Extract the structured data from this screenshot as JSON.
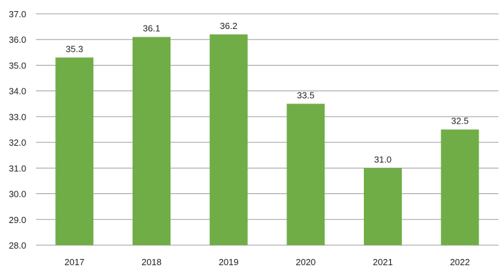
{
  "chart_data": {
    "type": "bar",
    "title": "",
    "xlabel": "",
    "ylabel": "",
    "categories": [
      "2017",
      "2018",
      "2019",
      "2020",
      "2021",
      "2022"
    ],
    "values": [
      35.3,
      36.1,
      36.2,
      33.5,
      31.0,
      32.5
    ],
    "value_labels": [
      "35.3",
      "36.1",
      "36.2",
      "33.5",
      "31.0",
      "32.5"
    ],
    "ylim": [
      28.0,
      37.0
    ],
    "yticks": [
      "28.0",
      "29.0",
      "30.0",
      "31.0",
      "32.0",
      "33.0",
      "34.0",
      "35.0",
      "36.0",
      "37.0"
    ],
    "grid": true,
    "legend": "none",
    "bar_color": "#70ad47"
  }
}
